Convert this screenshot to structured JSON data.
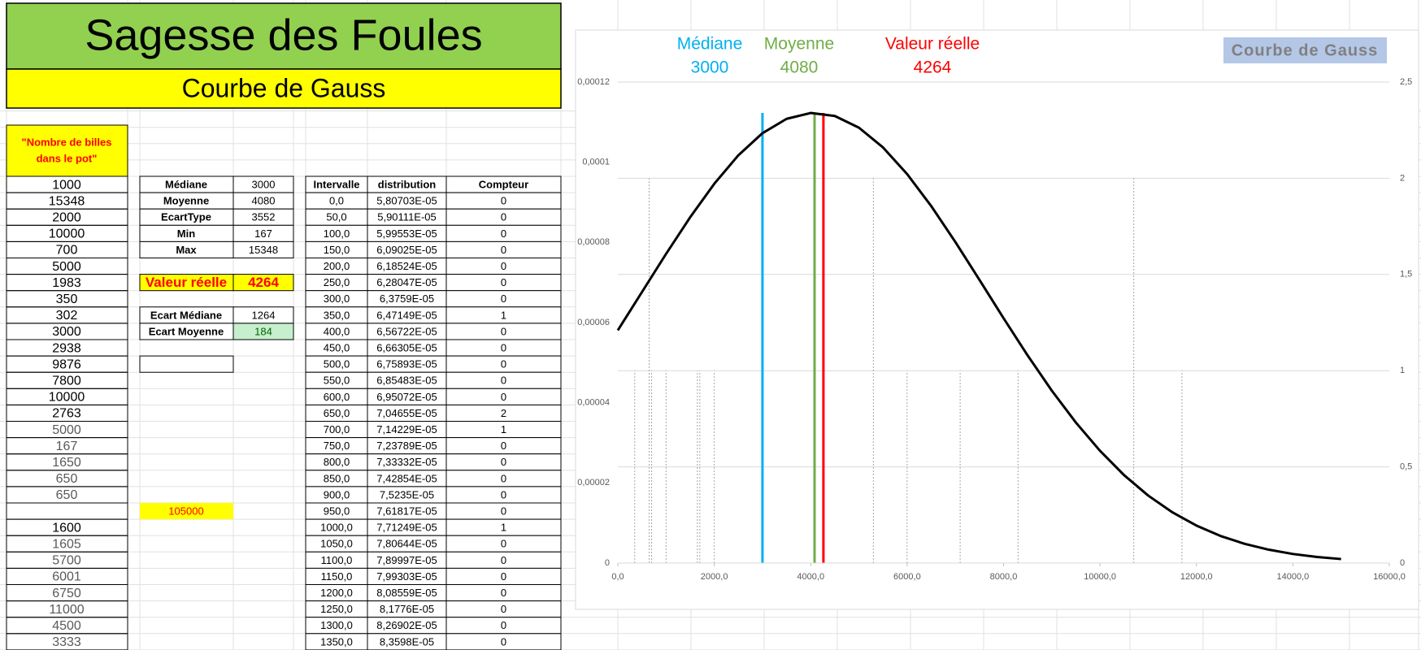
{
  "sheet": {
    "title": "Sagesse des Foules",
    "subtitle": "Courbe de Gauss",
    "column_header": [
      "\"Nombre de billes",
      "dans le pot\""
    ],
    "guesses": [
      1000,
      15348,
      2000,
      10000,
      700,
      5000,
      1983,
      350,
      302,
      3000,
      2938,
      9876,
      7800,
      10000,
      2763,
      5000,
      167,
      1650,
      650,
      650,
      null,
      1600,
      1605,
      5700,
      6001,
      6750,
      11000,
      4500,
      3333
    ],
    "stats": [
      [
        "Médiane",
        3000
      ],
      [
        "Moyenne",
        4080
      ],
      [
        "EcartType",
        3552
      ],
      [
        "Min",
        167
      ],
      [
        "Max",
        15348
      ]
    ],
    "real": [
      "Valeur réelle",
      4264
    ],
    "gaps": [
      [
        "Ecart Médiane",
        1264
      ],
      [
        "Ecart Moyenne",
        184
      ]
    ],
    "extra": 105000,
    "distribution": {
      "headers": [
        "Intervalle",
        "distribution",
        "Compteur"
      ],
      "rows": [
        [
          "0,0",
          "5,80703E-05",
          0
        ],
        [
          "50,0",
          "5,90111E-05",
          0
        ],
        [
          "100,0",
          "5,99553E-05",
          0
        ],
        [
          "150,0",
          "6,09025E-05",
          0
        ],
        [
          "200,0",
          "6,18524E-05",
          0
        ],
        [
          "250,0",
          "6,28047E-05",
          0
        ],
        [
          "300,0",
          "6,3759E-05",
          0
        ],
        [
          "350,0",
          "6,47149E-05",
          1
        ],
        [
          "400,0",
          "6,56722E-05",
          0
        ],
        [
          "450,0",
          "6,66305E-05",
          0
        ],
        [
          "500,0",
          "6,75893E-05",
          0
        ],
        [
          "550,0",
          "6,85483E-05",
          0
        ],
        [
          "600,0",
          "6,95072E-05",
          0
        ],
        [
          "650,0",
          "7,04655E-05",
          2
        ],
        [
          "700,0",
          "7,14229E-05",
          1
        ],
        [
          "750,0",
          "7,23789E-05",
          0
        ],
        [
          "800,0",
          "7,33332E-05",
          0
        ],
        [
          "850,0",
          "7,42854E-05",
          0
        ],
        [
          "900,0",
          "7,5235E-05",
          0
        ],
        [
          "950,0",
          "7,61817E-05",
          0
        ],
        [
          "1000,0",
          "7,71249E-05",
          1
        ],
        [
          "1050,0",
          "7,80644E-05",
          0
        ],
        [
          "1100,0",
          "7,89997E-05",
          0
        ],
        [
          "1150,0",
          "7,99303E-05",
          0
        ],
        [
          "1200,0",
          "8,08559E-05",
          0
        ],
        [
          "1250,0",
          "8,1776E-05",
          0
        ],
        [
          "1300,0",
          "8,26902E-05",
          0
        ],
        [
          "1350,0",
          "8,3598E-05",
          0
        ]
      ]
    }
  },
  "chart_data": {
    "type": "line",
    "title": "Courbe de Gauss",
    "x": [
      0,
      500,
      1000,
      1500,
      2000,
      2500,
      3000,
      3500,
      4000,
      4500,
      5000,
      5500,
      6000,
      6500,
      7000,
      7500,
      8000,
      8500,
      9000,
      9500,
      10000,
      10500,
      11000,
      11500,
      12000,
      12500,
      13000,
      13500,
      14000,
      14500,
      15000
    ],
    "series": [
      {
        "color": "#000000",
        "values": [
          5.807e-05,
          6.76e-05,
          7.713e-05,
          8.627e-05,
          9.462e-05,
          0.00010174,
          0.00010725,
          0.00011083,
          0.00011229,
          0.00011154,
          0.00010862,
          0.00010369,
          9.705e-05,
          8.906e-05,
          8.011e-05,
          7.065e-05,
          6.109e-05,
          5.179e-05,
          4.303e-05,
          3.506e-05,
          2.801e-05,
          2.193e-05,
          1.684e-05,
          1.267e-05,
          9.35e-06,
          6.76e-06,
          4.8e-06,
          3.34e-06,
          2.27e-06,
          1.52e-06,
          1e-06
        ]
      }
    ],
    "markers": [
      {
        "name": "Médiane",
        "value": 3000,
        "color": "#00b0f0"
      },
      {
        "name": "Moyenne",
        "value": 4080,
        "color": "#70ad47"
      },
      {
        "name": "Valeur réelle",
        "value": 4264,
        "color": "#ff0000"
      }
    ],
    "counts": {
      "axis": "y2",
      "color": "#a6a6a6",
      "x": [
        350,
        650,
        700,
        1000,
        1650,
        1700,
        2000,
        3000,
        5300,
        6000,
        7100,
        8300,
        10700,
        11700
      ],
      "values": [
        1,
        2,
        1,
        1,
        1,
        1,
        1,
        1,
        2,
        1,
        1,
        1,
        2,
        1
      ]
    },
    "xlim": [
      0,
      16000
    ],
    "xticks": [
      {
        "value": 0,
        "label": "0,0"
      },
      {
        "value": 2000,
        "label": "2000,0"
      },
      {
        "value": 4000,
        "label": "4000,0"
      },
      {
        "value": 6000,
        "label": "6000,0"
      },
      {
        "value": 8000,
        "label": "8000,0"
      },
      {
        "value": 10000,
        "label": "10000,0"
      },
      {
        "value": 12000,
        "label": "12000,0"
      },
      {
        "value": 14000,
        "label": "14000,0"
      },
      {
        "value": 16000,
        "label": "16000,0"
      }
    ],
    "ylim": [
      0,
      0.00012
    ],
    "yticks": [
      0,
      {
        "value": 2e-05,
        "label": "0,00002"
      },
      {
        "value": 4e-05,
        "label": "0,00004"
      },
      {
        "value": 6e-05,
        "label": "0,00006"
      },
      {
        "value": 8e-05,
        "label": "0,00008"
      },
      {
        "value": 0.0001,
        "label": "0,0001"
      },
      {
        "value": 0.00012,
        "label": "0,00012"
      }
    ],
    "y2lim": [
      0,
      2.5
    ],
    "y2ticks": [
      0,
      {
        "value": 0.5,
        "label": "0,5"
      },
      1,
      {
        "value": 1.5,
        "label": "1,5"
      },
      2,
      {
        "value": 2.5,
        "label": "2,5"
      }
    ],
    "grid": "y2"
  }
}
